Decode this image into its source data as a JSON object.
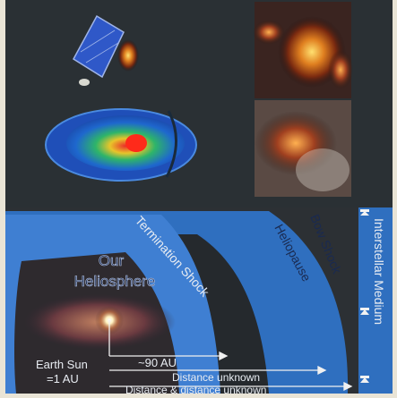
{
  "labels": {
    "our_heliosphere_line1": "Our",
    "our_heliosphere_line2": "Heliosphere",
    "termination_shock": "Termination Shock",
    "heliopause": "Heliopause",
    "bow_shock": "Bow Shock",
    "interstellar_medium": "Interstellar Medium",
    "earth_sun_line1": "Earth Sun",
    "earth_sun_line2": "=1 AU",
    "distance_90_au": "~90 AU",
    "distance_unknown": "Distance unknown",
    "distance_and_distance_unknown": "Distance & distance unknown"
  },
  "colors": {
    "heliosphere_blue": "#3f7fd2",
    "outer_dark": "#23272b",
    "sheath_blue": "#2f6fbf",
    "label_white": "#e8ecf2",
    "arrow_bar": "#f2f2f2"
  }
}
